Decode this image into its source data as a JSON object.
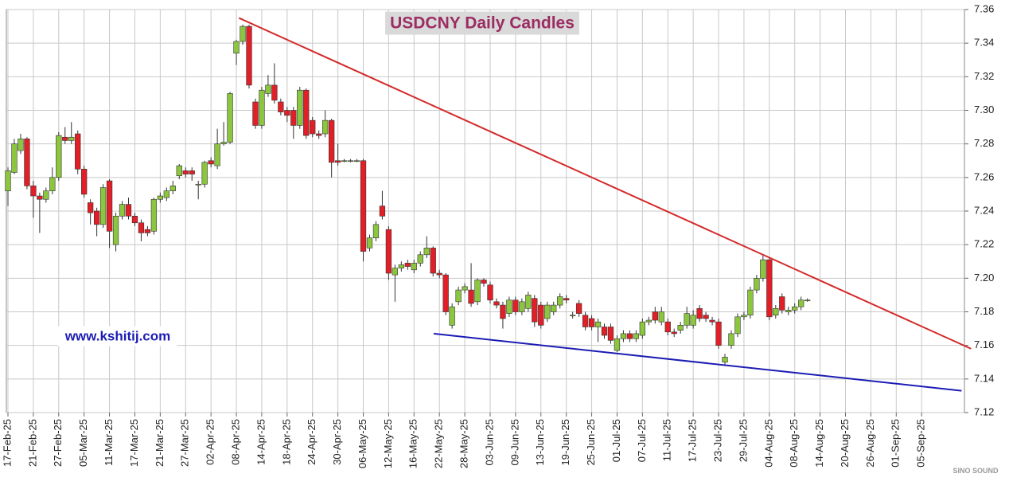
{
  "chart_data": {
    "type": "candlestick",
    "title": "USDCNY Daily Candles",
    "watermark": "www.kshitij.com",
    "logo_text": "SINO SOUND",
    "categories": [
      "17-Feb-25",
      null,
      null,
      null,
      "21-Feb-25",
      null,
      null,
      null,
      "27-Feb-25",
      null,
      null,
      null,
      "05-Mar-25",
      null,
      null,
      null,
      "11-Mar-25",
      null,
      null,
      null,
      "17-Mar-25",
      null,
      null,
      null,
      "21-Mar-25",
      null,
      null,
      null,
      "27-Mar-25",
      null,
      null,
      null,
      "02-Apr-25",
      null,
      null,
      null,
      "08-Apr-25",
      null,
      null,
      null,
      "14-Apr-25",
      null,
      null,
      null,
      "18-Apr-25",
      null,
      null,
      null,
      "24-Apr-25",
      null,
      null,
      null,
      "30-Apr-25",
      null,
      null,
      null,
      "06-May-25",
      null,
      null,
      null,
      "12-May-25",
      null,
      null,
      null,
      "16-May-25",
      null,
      null,
      null,
      "22-May-25",
      null,
      null,
      null,
      "28-May-25",
      null,
      null,
      null,
      "03-Jun-25",
      null,
      null,
      null,
      "09-Jun-25",
      null,
      null,
      null,
      "13-Jun-25",
      null,
      null,
      null,
      "19-Jun-25",
      null,
      null,
      null,
      "25-Jun-25",
      null,
      null,
      null,
      "01-Jul-25",
      null,
      null,
      null,
      "07-Jul-25",
      null,
      null,
      null,
      "11-Jul-25",
      null,
      null,
      null,
      "17-Jul-25",
      null,
      null,
      null,
      "23-Jul-25",
      null,
      null,
      null,
      "29-Jul-25",
      null,
      null,
      null,
      "04-Aug-25",
      null,
      null,
      null,
      "08-Aug-25",
      null,
      null,
      null,
      "14-Aug-25",
      null,
      null,
      null,
      "20-Aug-25",
      null,
      null,
      null,
      "26-Aug-25",
      null,
      null,
      null,
      "01-Sep-25",
      null,
      null,
      null,
      "05-Sep-25",
      null,
      null,
      null,
      null,
      null,
      null
    ],
    "open": [
      7.252,
      7.263,
      7.276,
      7.283,
      7.255,
      7.249,
      7.247,
      7.252,
      7.26,
      7.284,
      7.282,
      7.286,
      7.265,
      7.245,
      7.24,
      7.232,
      7.258,
      7.22,
      7.237,
      7.244,
      7.237,
      7.233,
      7.229,
      7.228,
      7.247,
      7.248,
      7.252,
      7.261,
      7.264,
      7.264,
      7.256,
      7.256,
      7.27,
      7.267,
      7.28,
      7.281,
      7.334,
      7.341,
      7.35,
      7.305,
      7.291,
      7.31,
      7.315,
      7.305,
      7.3,
      7.3,
      7.291,
      7.312,
      7.294,
      7.286,
      7.286,
      7.294,
      7.27,
      7.27,
      7.27,
      7.27,
      7.27,
      7.218,
      7.224,
      7.243,
      7.229,
      7.202,
      7.206,
      7.209,
      7.205,
      7.209,
      7.214,
      7.218,
      7.203,
      7.202,
      7.172,
      7.186,
      7.193,
      7.193,
      7.186,
      7.199,
      7.196,
      7.186,
      7.184,
      7.179,
      7.187,
      7.18,
      7.182,
      7.188,
      7.184,
      7.176,
      7.18,
      7.184,
      7.188,
      7.178,
      7.185,
      7.178,
      7.176,
      7.171,
      7.171,
      7.171,
      7.157,
      7.164,
      7.167,
      7.164,
      7.166,
      7.174,
      7.18,
      7.174,
      7.174,
      7.168,
      7.169,
      7.172,
      7.172,
      7.182,
      7.178,
      7.175,
      7.174,
      7.15,
      7.16,
      7.167,
      7.177,
      7.178,
      7.193,
      7.2,
      7.211,
      7.178,
      7.189,
      7.18,
      7.181,
      7.183,
      7.187,
      null,
      null,
      null,
      null,
      null,
      null,
      null,
      null,
      null,
      null,
      null,
      null,
      null,
      null,
      null,
      null,
      null,
      null,
      null,
      null,
      null,
      null,
      null,
      null
    ],
    "high": [
      7.266,
      7.283,
      7.286,
      7.284,
      7.258,
      7.251,
      7.254,
      7.266,
      7.287,
      7.29,
      7.293,
      7.288,
      7.267,
      7.247,
      7.242,
      7.256,
      7.259,
      7.239,
      7.246,
      7.248,
      7.239,
      7.235,
      7.231,
      7.248,
      7.251,
      7.254,
      7.258,
      7.268,
      7.266,
      7.266,
      7.258,
      7.27,
      7.272,
      7.289,
      7.293,
      7.311,
      7.342,
      7.351,
      7.351,
      7.307,
      7.314,
      7.321,
      7.328,
      7.307,
      7.302,
      7.302,
      7.314,
      7.313,
      7.296,
      7.288,
      7.3,
      7.295,
      7.28,
      7.271,
      7.271,
      7.271,
      7.271,
      7.226,
      7.234,
      7.252,
      7.231,
      7.208,
      7.21,
      7.211,
      7.211,
      7.216,
      7.225,
      7.219,
      7.205,
      7.203,
      7.185,
      7.195,
      7.197,
      7.209,
      7.2,
      7.2,
      7.198,
      7.188,
      7.186,
      7.189,
      7.189,
      7.188,
      7.192,
      7.19,
      7.186,
      7.186,
      7.186,
      7.191,
      7.19,
      7.18,
      7.187,
      7.18,
      7.178,
      7.176,
      7.173,
      7.173,
      7.166,
      7.169,
      7.169,
      7.169,
      7.176,
      7.177,
      7.183,
      7.183,
      7.176,
      7.17,
      7.174,
      7.183,
      7.181,
      7.184,
      7.18,
      7.177,
      7.176,
      7.155,
      7.169,
      7.179,
      7.18,
      7.195,
      7.202,
      7.214,
      7.212,
      7.184,
      7.191,
      7.183,
      7.185,
      7.189,
      7.188,
      null,
      null,
      null,
      null,
      null,
      null,
      null,
      null,
      null,
      null,
      null,
      null,
      null,
      null,
      null,
      null,
      null,
      null,
      null,
      null,
      null,
      null,
      null,
      null
    ],
    "low": [
      7.243,
      7.262,
      7.274,
      7.253,
      7.236,
      7.227,
      7.245,
      7.25,
      7.258,
      7.28,
      7.28,
      7.262,
      7.248,
      7.232,
      7.225,
      7.23,
      7.218,
      7.216,
      7.235,
      7.235,
      7.231,
      7.222,
      7.225,
      7.226,
      7.245,
      7.246,
      7.25,
      7.259,
      7.26,
      7.258,
      7.247,
      7.254,
      7.266,
      7.265,
      7.279,
      7.28,
      7.327,
      7.339,
      7.313,
      7.289,
      7.289,
      7.308,
      7.304,
      7.297,
      7.293,
      7.283,
      7.289,
      7.283,
      7.284,
      7.283,
      7.284,
      7.26,
      7.267,
      7.269,
      7.269,
      7.269,
      7.21,
      7.216,
      7.222,
      7.235,
      7.199,
      7.186,
      7.204,
      7.205,
      7.203,
      7.207,
      7.212,
      7.201,
      7.2,
      7.178,
      7.17,
      7.184,
      7.191,
      7.183,
      7.184,
      7.195,
      7.185,
      7.182,
      7.17,
      7.177,
      7.178,
      7.178,
      7.18,
      7.171,
      7.17,
      7.174,
      7.178,
      7.182,
      7.185,
      7.176,
      7.177,
      7.169,
      7.169,
      7.162,
      7.164,
      7.161,
      7.156,
      7.162,
      7.162,
      7.162,
      7.164,
      7.172,
      7.173,
      7.172,
      7.166,
      7.165,
      7.167,
      7.17,
      7.17,
      7.174,
      7.174,
      7.172,
      7.158,
      7.148,
      7.158,
      7.165,
      7.175,
      7.176,
      7.191,
      7.198,
      7.175,
      7.176,
      7.179,
      7.178,
      7.179,
      7.181,
      7.186,
      null,
      null,
      null,
      null,
      null,
      null,
      null,
      null,
      null,
      null,
      null,
      null,
      null,
      null,
      null,
      null,
      null,
      null,
      null,
      null,
      null,
      null,
      null,
      null
    ],
    "close": [
      7.264,
      7.28,
      7.283,
      7.255,
      7.249,
      7.247,
      7.252,
      7.26,
      7.285,
      7.282,
      7.284,
      7.265,
      7.25,
      7.239,
      7.232,
      7.254,
      7.228,
      7.237,
      7.244,
      7.237,
      7.233,
      7.227,
      7.227,
      7.247,
      7.249,
      7.252,
      7.255,
      7.267,
      7.262,
      7.262,
      7.256,
      7.269,
      7.268,
      7.28,
      7.281,
      7.31,
      7.341,
      7.35,
      7.315,
      7.291,
      7.312,
      7.315,
      7.306,
      7.299,
      7.297,
      7.291,
      7.312,
      7.285,
      7.286,
      7.285,
      7.294,
      7.269,
      7.269,
      7.27,
      7.27,
      7.27,
      7.216,
      7.224,
      7.232,
      7.237,
      7.203,
      7.206,
      7.208,
      7.207,
      7.209,
      7.214,
      7.218,
      7.203,
      7.202,
      7.18,
      7.183,
      7.193,
      7.195,
      7.185,
      7.199,
      7.197,
      7.187,
      7.184,
      7.176,
      7.187,
      7.18,
      7.186,
      7.19,
      7.174,
      7.172,
      7.184,
      7.184,
      7.189,
      7.187,
      7.178,
      7.179,
      7.171,
      7.171,
      7.174,
      7.166,
      7.163,
      7.164,
      7.167,
      7.164,
      7.167,
      7.174,
      7.175,
      7.175,
      7.18,
      7.168,
      7.167,
      7.172,
      7.179,
      7.178,
      7.176,
      7.176,
      7.174,
      7.16,
      7.153,
      7.167,
      7.177,
      7.178,
      7.193,
      7.2,
      7.211,
      7.177,
      7.182,
      7.181,
      7.181,
      7.183,
      7.187,
      7.187,
      null,
      null,
      null,
      null,
      null,
      null,
      null,
      null,
      null,
      null,
      null,
      null,
      null,
      null,
      null,
      null,
      null,
      null,
      null,
      null,
      null,
      null,
      null,
      null
    ],
    "up_color": "#8cc63e",
    "down_color": "#e21f26",
    "trend_lines": [
      {
        "color": "#d42a2a",
        "x": [
          36.4,
          151.8
        ],
        "y": [
          7.355,
          7.158
        ]
      },
      {
        "color": "#1c1cb4",
        "x": [
          67.1,
          150.3
        ],
        "y": [
          7.167,
          7.133
        ]
      }
    ],
    "ylim": [
      7.12,
      7.36
    ],
    "yticks": [
      7.12,
      7.14,
      7.16,
      7.18,
      {
        "value": 7.2,
        "label": "7.20"
      },
      7.22,
      7.24,
      7.26,
      7.28,
      {
        "value": 7.3,
        "label": "7.30"
      },
      7.32,
      7.34,
      7.36
    ],
    "grid": true
  }
}
